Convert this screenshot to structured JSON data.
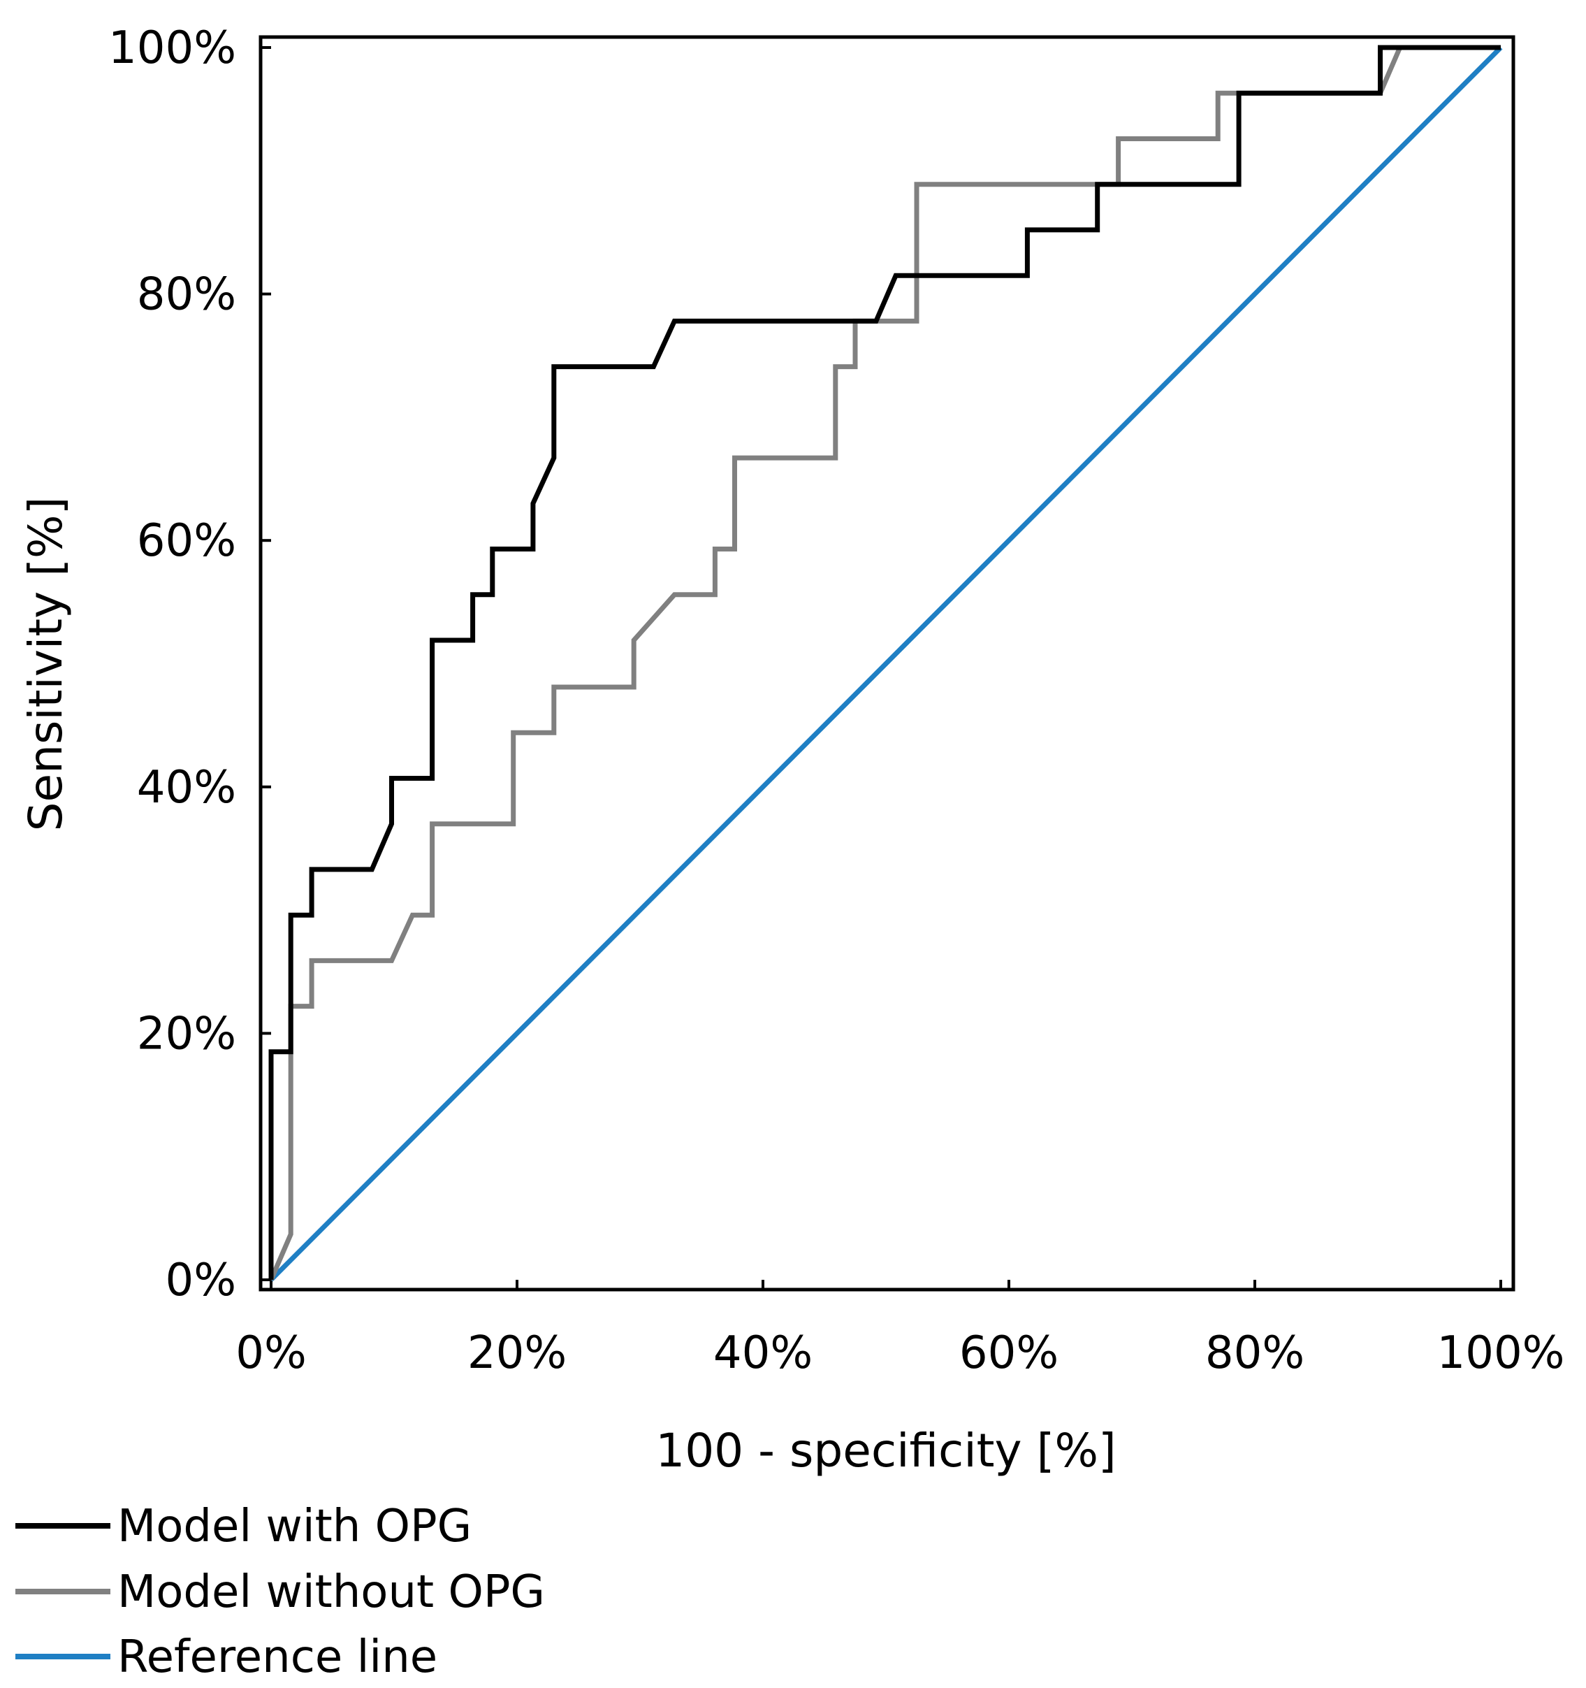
{
  "chart_data": {
    "type": "line",
    "title": "",
    "xlabel": "100 - specificity [%]",
    "ylabel": "Sensitivity [%]",
    "xlim": [
      0,
      100
    ],
    "ylim": [
      0,
      100
    ],
    "x_ticks": [
      "0%",
      "20%",
      "40%",
      "60%",
      "80%",
      "100%"
    ],
    "y_ticks": [
      "0%",
      "20%",
      "40%",
      "60%",
      "80%",
      "100%"
    ],
    "legend_position": "bottom-left",
    "series": [
      {
        "name": "Model with OPG",
        "color": "#000000",
        "x": [
          0,
          0,
          1.6,
          1.6,
          3.3,
          3.3,
          8.2,
          9.8,
          9.8,
          13.1,
          13.1,
          16.4,
          16.4,
          18.0,
          18.0,
          21.3,
          21.3,
          23.0,
          23.0,
          31.1,
          32.8,
          46.9,
          49.2,
          50.8,
          52.5,
          57.4,
          61.5,
          61.5,
          67.2,
          67.2,
          78.7,
          78.7,
          90.2,
          90.2,
          100
        ],
        "y": [
          0,
          18.5,
          18.5,
          29.6,
          29.6,
          33.3,
          33.3,
          37.0,
          40.7,
          40.7,
          51.9,
          51.9,
          55.6,
          55.6,
          59.3,
          59.3,
          63.0,
          66.7,
          74.1,
          74.1,
          77.8,
          77.8,
          77.8,
          81.5,
          81.5,
          81.5,
          81.5,
          85.2,
          85.2,
          88.9,
          88.9,
          96.3,
          96.3,
          100,
          100
        ]
      },
      {
        "name": "Model without OPG",
        "color": "#808080",
        "x": [
          0,
          1.6,
          1.6,
          3.3,
          3.3,
          9.8,
          11.5,
          13.1,
          13.1,
          19.7,
          19.7,
          23.0,
          23.0,
          29.5,
          29.5,
          32.8,
          36.1,
          36.1,
          37.7,
          37.7,
          45.9,
          45.9,
          47.5,
          47.5,
          52.5,
          52.5,
          68.9,
          68.9,
          77.0,
          77.0,
          90.2,
          91.8,
          100
        ],
        "y": [
          0,
          3.7,
          22.2,
          22.2,
          25.9,
          25.9,
          29.6,
          29.6,
          37.0,
          37.0,
          44.4,
          44.4,
          48.1,
          48.1,
          51.9,
          55.6,
          55.6,
          59.3,
          59.3,
          66.7,
          66.7,
          74.1,
          74.1,
          77.8,
          77.8,
          88.9,
          88.9,
          92.6,
          92.6,
          96.3,
          96.3,
          100,
          100
        ]
      },
      {
        "name": "Reference line",
        "color": "#1f7fc4",
        "x": [
          0,
          100
        ],
        "y": [
          0,
          100
        ]
      }
    ]
  }
}
